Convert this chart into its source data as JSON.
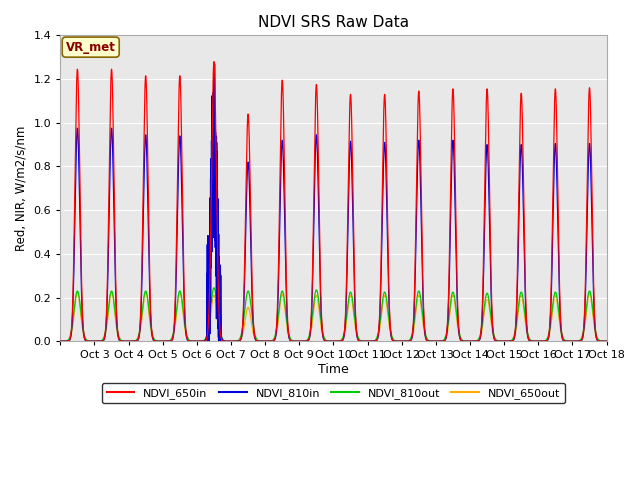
{
  "title": "NDVI SRS Raw Data",
  "xlabel": "Time",
  "ylabel": "Red, NIR, W/m2/s/nm",
  "ylim": [
    0,
    1.4
  ],
  "fig_bg": "#ffffff",
  "plot_bg": "#e8e8e8",
  "annotation_text": "VR_met",
  "annotation_bg": "#ffffcc",
  "annotation_border": "#886600",
  "series_650in_color": "#ff0000",
  "series_810in_color": "#0000dd",
  "series_810out_color": "#00cc00",
  "series_650out_color": "#ffaa00",
  "peaks_650in": [
    1.245,
    1.245,
    1.215,
    1.215,
    1.28,
    1.04,
    1.195,
    1.175,
    1.13,
    1.13,
    1.145,
    1.155,
    1.155,
    1.135,
    1.155,
    1.16
  ],
  "peaks_810in": [
    0.975,
    0.975,
    0.945,
    0.94,
    0.89,
    0.82,
    0.92,
    0.945,
    0.915,
    0.91,
    0.92,
    0.92,
    0.9,
    0.9,
    0.905,
    0.905
  ],
  "peaks_810in_noise": [
    0,
    0,
    0,
    0,
    1,
    0,
    0,
    0,
    0,
    0,
    0,
    0,
    0,
    0,
    0,
    0
  ],
  "peaks_810out": [
    0.23,
    0.23,
    0.23,
    0.23,
    0.245,
    0.23,
    0.23,
    0.235,
    0.225,
    0.225,
    0.23,
    0.225,
    0.22,
    0.225,
    0.225,
    0.23
  ],
  "peaks_650out": [
    0.225,
    0.225,
    0.225,
    0.225,
    0.21,
    0.155,
    0.215,
    0.21,
    0.21,
    0.21,
    0.21,
    0.21,
    0.2,
    0.21,
    0.21,
    0.22
  ],
  "num_days": 16,
  "xtick_labels": [
    "Oct 3",
    "Oct 4",
    "Oct 5",
    "Oct 6",
    "Oct 7",
    "Oct 8",
    "Oct 9",
    "Oct 10",
    "Oct 11",
    "Oct 12",
    "Oct 13",
    "Oct 14",
    "Oct 15",
    "Oct 16",
    "Oct 17",
    "Oct 18"
  ],
  "legend_labels": [
    "NDVI_650in",
    "NDVI_810in",
    "NDVI_810out",
    "NDVI_650out"
  ],
  "legend_colors": [
    "#ff0000",
    "#0000dd",
    "#00cc00",
    "#ffaa00"
  ]
}
